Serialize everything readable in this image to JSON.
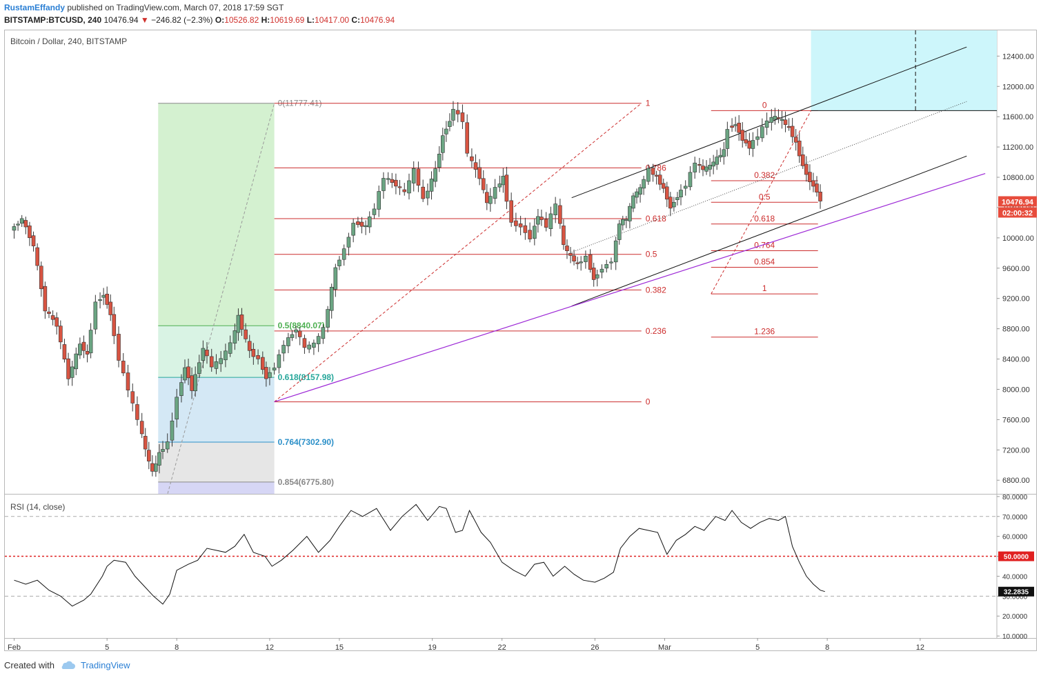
{
  "header": {
    "author": "RustamEffandy",
    "published_text": "published on TradingView.com, March 07, 2018 17:59 SGT"
  },
  "symbol_bar": {
    "symbol": "BITSTAMP:BTCUSD, 240",
    "price": "10476.94",
    "change": "−246.82 (−2.3%)",
    "o_label": "O:",
    "o_value": "10526.82",
    "h_label": "H:",
    "h_value": "10619.69",
    "l_label": "L:",
    "l_value": "10417.00",
    "c_label": "C:",
    "c_value": "10476.94"
  },
  "footer": {
    "created_with": "Created with",
    "brand": "TradingView"
  },
  "colors": {
    "up": "#6ba583",
    "down": "#d75442",
    "fib": "#cc2b2b",
    "channel": "#111111",
    "trend_purple": "#9c27d6",
    "target_zone": "#cdf6fb",
    "rsi_line": "#111111",
    "rsi_mid": "#e02020"
  },
  "chart_data": {
    "type": "candlestick",
    "title": "Bitcoin / Dollar, 240, BITSTAMP",
    "last_price_label": "10476.94",
    "countdown_label": "02:00:32",
    "y_ticks": [
      "6800.00",
      "7200.00",
      "7600.00",
      "8000.00",
      "8400.00",
      "8800.00",
      "9200.00",
      "9600.00",
      "10000.00",
      "10400.00",
      "10800.00",
      "11200.00",
      "11600.00",
      "12000.00",
      "12400.00"
    ],
    "y_tick_values": [
      6800,
      7200,
      7600,
      8000,
      8400,
      8800,
      9200,
      9600,
      10000,
      10400,
      10800,
      11200,
      11600,
      12000,
      12400
    ],
    "ylim": [
      6620,
      12740
    ],
    "x_labels": [
      {
        "text": "Feb",
        "day": 0
      },
      {
        "text": "5",
        "day": 4
      },
      {
        "text": "8",
        "day": 7
      },
      {
        "text": "12",
        "day": 11
      },
      {
        "text": "15",
        "day": 14
      },
      {
        "text": "19",
        "day": 18
      },
      {
        "text": "22",
        "day": 21
      },
      {
        "text": "26",
        "day": 25
      },
      {
        "text": "Mar",
        "day": 28
      },
      {
        "text": "5",
        "day": 32
      },
      {
        "text": "8",
        "day": 35
      },
      {
        "text": "12",
        "day": 39
      }
    ],
    "xlim_days": [
      -0.4,
      42.3
    ],
    "close_path": [
      [
        0,
        10100
      ],
      [
        0.5,
        10250
      ],
      [
        1,
        9900
      ],
      [
        1.5,
        9050
      ],
      [
        2,
        8850
      ],
      [
        2.5,
        8150
      ],
      [
        3,
        8600
      ],
      [
        3.3,
        8450
      ],
      [
        3.7,
        9150
      ],
      [
        4,
        9250
      ],
      [
        4.3,
        9000
      ],
      [
        4.7,
        8400
      ],
      [
        5.1,
        8000
      ],
      [
        5.5,
        7600
      ],
      [
        5.8,
        7200
      ],
      [
        6.1,
        6900
      ],
      [
        6.4,
        7150
      ],
      [
        6.8,
        7300
      ],
      [
        7.2,
        7900
      ],
      [
        7.5,
        8300
      ],
      [
        7.8,
        8000
      ],
      [
        8.3,
        8550
      ],
      [
        8.7,
        8300
      ],
      [
        9.1,
        8400
      ],
      [
        9.5,
        8600
      ],
      [
        9.8,
        8960
      ],
      [
        10.3,
        8500
      ],
      [
        10.7,
        8400
      ],
      [
        11,
        8150
      ],
      [
        11.4,
        8300
      ],
      [
        11.8,
        8600
      ],
      [
        12.3,
        8800
      ],
      [
        12.7,
        8550
      ],
      [
        13.1,
        8600
      ],
      [
        13.5,
        8800
      ],
      [
        14,
        9600
      ],
      [
        14.4,
        9850
      ],
      [
        14.8,
        10200
      ],
      [
        15.3,
        10150
      ],
      [
        15.7,
        10400
      ],
      [
        16.1,
        10800
      ],
      [
        16.6,
        10700
      ],
      [
        17,
        10600
      ],
      [
        17.4,
        10900
      ],
      [
        17.8,
        10500
      ],
      [
        18.3,
        10900
      ],
      [
        18.6,
        11350
      ],
      [
        18.9,
        11550
      ],
      [
        19.1,
        11700
      ],
      [
        19.5,
        11550
      ],
      [
        19.7,
        11100
      ],
      [
        20.2,
        10800
      ],
      [
        20.5,
        10450
      ],
      [
        20.9,
        10650
      ],
      [
        21.2,
        10800
      ],
      [
        21.6,
        10200
      ],
      [
        22,
        10150
      ],
      [
        22.4,
        10000
      ],
      [
        22.7,
        10300
      ],
      [
        23.1,
        10150
      ],
      [
        23.5,
        10450
      ],
      [
        23.8,
        9900
      ],
      [
        24.1,
        9750
      ],
      [
        24.4,
        9650
      ],
      [
        24.8,
        9750
      ],
      [
        25.1,
        9450
      ],
      [
        25.5,
        9600
      ],
      [
        25.9,
        9700
      ],
      [
        26.2,
        10200
      ],
      [
        26.5,
        10250
      ],
      [
        26.8,
        10550
      ],
      [
        27.1,
        10650
      ],
      [
        27.5,
        10900
      ],
      [
        27.8,
        10800
      ],
      [
        28.1,
        10650
      ],
      [
        28.4,
        10400
      ],
      [
        28.7,
        10550
      ],
      [
        29.1,
        10700
      ],
      [
        29.5,
        11000
      ],
      [
        29.8,
        10900
      ],
      [
        30.1,
        10950
      ],
      [
        30.4,
        11050
      ],
      [
        30.7,
        11150
      ],
      [
        30.9,
        11450
      ],
      [
        31.2,
        11500
      ],
      [
        31.5,
        11300
      ],
      [
        31.8,
        11200
      ],
      [
        32.2,
        11350
      ],
      [
        32.6,
        11550
      ],
      [
        32.9,
        11600
      ],
      [
        33.2,
        11550
      ],
      [
        33.5,
        11450
      ],
      [
        33.8,
        11250
      ],
      [
        34.1,
        10950
      ],
      [
        34.4,
        10750
      ],
      [
        34.7,
        10620
      ],
      [
        34.9,
        10477
      ]
    ],
    "fib_retracement": {
      "high_label": "0(11777.41)",
      "high": 11777.41,
      "levels": [
        {
          "label": "0.5(8840.07)",
          "price": 8840.07,
          "color": "#4caf50"
        },
        {
          "label": "0.618(8157.98)",
          "price": 8157.98,
          "color": "#26a69a"
        },
        {
          "label": "0.764(7302.90)",
          "price": 7302.9,
          "color": "#2a8fc8"
        },
        {
          "label": "0.854(6775.80)",
          "price": 6775.8,
          "color": "#888888"
        }
      ]
    },
    "fib_extension": [
      {
        "label": "1",
        "price": 11777
      },
      {
        "label": "0.786",
        "price": 10924
      },
      {
        "label": "0.618",
        "price": 10254
      },
      {
        "label": "0.5",
        "price": 9783
      },
      {
        "label": "0.382",
        "price": 9312
      },
      {
        "label": "0.236",
        "price": 8770
      },
      {
        "label": "0",
        "price": 7835
      }
    ],
    "fib_right": [
      {
        "label": "0",
        "price": 11680
      },
      {
        "label": "0.382",
        "price": 10755
      },
      {
        "label": "0.5",
        "price": 10470
      },
      {
        "label": "0.618",
        "price": 10183
      },
      {
        "label": "0.764",
        "price": 9830
      },
      {
        "label": "0.854",
        "price": 9612
      },
      {
        "label": "1",
        "price": 9260
      },
      {
        "label": "1.236",
        "price": 8690
      }
    ],
    "rsi": {
      "label": "RSI (14, close)",
      "current_label": "32.2835",
      "mid_label": "50.0000",
      "y_ticks": [
        "10.0000",
        "20.0000",
        "30.0000",
        "40.0000",
        "50.0000",
        "60.0000",
        "70.0000",
        "80.0000"
      ],
      "y_tick_values": [
        10,
        20,
        30,
        40,
        50,
        60,
        70,
        80
      ],
      "ylim": [
        9,
        81
      ],
      "upper_band": 70,
      "lower_band": 30,
      "mid": 50,
      "values": [
        [
          0,
          38
        ],
        [
          0.5,
          36
        ],
        [
          1,
          38
        ],
        [
          1.5,
          33
        ],
        [
          2,
          30
        ],
        [
          2.5,
          25
        ],
        [
          3,
          28
        ],
        [
          3.3,
          31
        ],
        [
          3.8,
          40
        ],
        [
          4,
          45
        ],
        [
          4.3,
          48
        ],
        [
          4.8,
          47
        ],
        [
          5.2,
          40
        ],
        [
          5.6,
          35
        ],
        [
          6,
          30
        ],
        [
          6.4,
          26
        ],
        [
          6.7,
          31
        ],
        [
          7,
          43
        ],
        [
          7.5,
          46
        ],
        [
          7.9,
          48
        ],
        [
          8.3,
          54
        ],
        [
          8.7,
          53
        ],
        [
          9.1,
          52
        ],
        [
          9.5,
          55
        ],
        [
          9.9,
          61
        ],
        [
          10.3,
          52
        ],
        [
          10.8,
          50
        ],
        [
          11.1,
          45
        ],
        [
          11.5,
          48
        ],
        [
          12,
          53
        ],
        [
          12.6,
          60
        ],
        [
          13.1,
          52
        ],
        [
          13.6,
          58
        ],
        [
          14,
          65
        ],
        [
          14.5,
          73
        ],
        [
          15,
          70
        ],
        [
          15.6,
          74
        ],
        [
          16.2,
          63
        ],
        [
          16.7,
          70
        ],
        [
          17.3,
          76
        ],
        [
          17.8,
          68
        ],
        [
          18.3,
          75
        ],
        [
          18.6,
          74
        ],
        [
          19,
          62
        ],
        [
          19.3,
          63
        ],
        [
          19.6,
          73
        ],
        [
          20.1,
          62
        ],
        [
          20.5,
          57
        ],
        [
          21,
          47
        ],
        [
          21.5,
          43
        ],
        [
          22,
          40
        ],
        [
          22.4,
          46
        ],
        [
          22.8,
          47
        ],
        [
          23.2,
          40
        ],
        [
          23.7,
          45
        ],
        [
          24.1,
          41
        ],
        [
          24.5,
          38
        ],
        [
          25,
          37
        ],
        [
          25.4,
          39
        ],
        [
          25.8,
          42
        ],
        [
          26.1,
          54
        ],
        [
          26.5,
          60
        ],
        [
          26.9,
          64
        ],
        [
          27.3,
          63
        ],
        [
          27.7,
          62
        ],
        [
          28.1,
          51
        ],
        [
          28.5,
          58
        ],
        [
          28.9,
          61
        ],
        [
          29.3,
          65
        ],
        [
          29.7,
          63
        ],
        [
          30.2,
          70
        ],
        [
          30.6,
          68
        ],
        [
          30.9,
          73
        ],
        [
          31.3,
          67
        ],
        [
          31.7,
          64
        ],
        [
          32.1,
          67
        ],
        [
          32.5,
          69
        ],
        [
          32.9,
          68
        ],
        [
          33.2,
          70
        ],
        [
          33.5,
          55
        ],
        [
          33.8,
          47
        ],
        [
          34.1,
          40
        ],
        [
          34.4,
          36
        ],
        [
          34.7,
          33
        ],
        [
          34.9,
          32.3
        ]
      ]
    }
  }
}
